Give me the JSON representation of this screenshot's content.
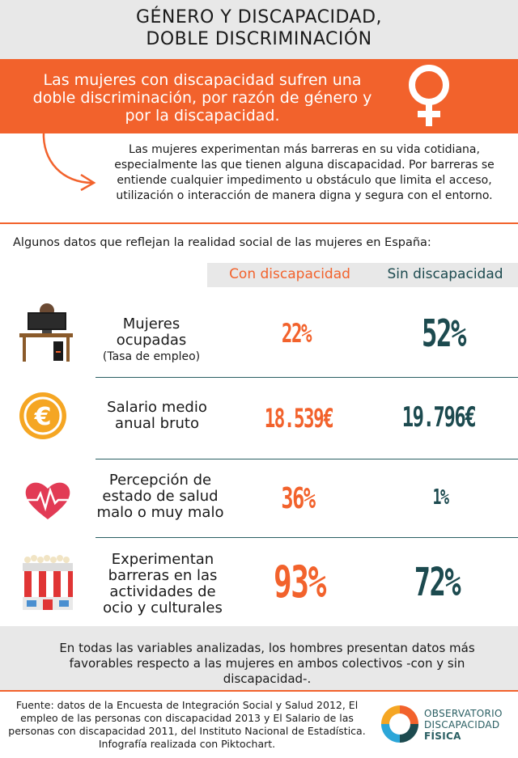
{
  "header": {
    "title_line1": "GÉNERO Y DISCAPACIDAD,",
    "title_line2": "DOBLE DISCRIMINACIÓN"
  },
  "banner": {
    "text": "Las mujeres con discapacidad sufren una doble discriminación, por razón de género y por la discapacidad."
  },
  "description": "Las mujeres experimentan más barreras en su vida cotidiana, especialmente las que tienen alguna discapacidad. Por barreras se entiende cualquier impedimento u obstáculo que limita el acceso, utilización o interacción de manera digna y segura con el entorno.",
  "intro": "Algunos datos que reflejan la realidad social de las mujeres en España:",
  "columns": {
    "con": "Con discapacidad",
    "sin": "Sin discapacidad"
  },
  "rows": [
    {
      "label": "Mujeres ocupadas",
      "sublabel": "(Tasa de empleo)",
      "con": "22%",
      "sin": "52%",
      "icon": "office-worker-icon"
    },
    {
      "label": "Salario medio anual bruto",
      "con": "18.539€",
      "sin": "19.796€",
      "icon": "euro-coin-icon"
    },
    {
      "label": "Percepción de estado de salud malo o muy malo",
      "con": "36%",
      "sin": "1%",
      "icon": "heart-pulse-icon"
    },
    {
      "label": "Experimentan barreras en las actividades de ocio y culturales",
      "con": "93%",
      "sin": "72%",
      "icon": "cinema-popcorn-icon"
    }
  ],
  "footer": {
    "text": "En todas las variables analizadas, los hombres presentan datos más favorables respecto a las mujeres en ambos colectivos -con y sin discapacidad-."
  },
  "source": "Fuente: datos de la Encuesta de Integración Social y Salud 2012, El empleo de las personas con discapacidad 2013 y El Salario de las personas con discapacidad 2011, del Instituto Nacional de Estadística. Infografía realizada con Piktochart.",
  "logo": {
    "line1": "OBSERVATORIO",
    "line2": "DISCAPACIDAD",
    "line3": "FÍSICA"
  },
  "colors": {
    "orange": "#f2622c",
    "teal": "#1c4a4f",
    "gray": "#e8e8e8"
  }
}
